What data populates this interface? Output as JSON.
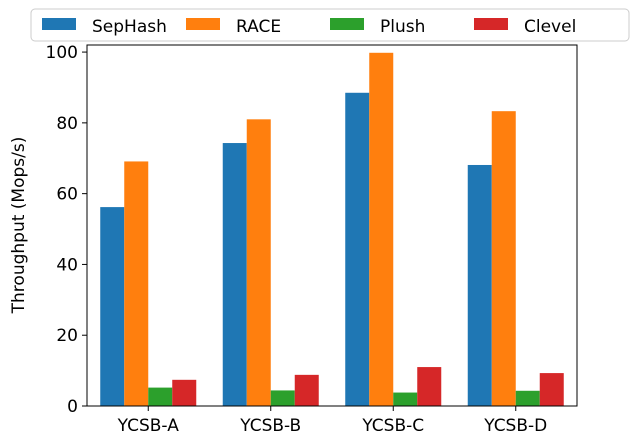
{
  "chart_data": {
    "type": "bar",
    "categories": [
      "YCSB-A",
      "YCSB-B",
      "YCSB-C",
      "YCSB-D"
    ],
    "series": [
      {
        "name": "SepHash",
        "color": "#1f77b4",
        "values": [
          56.2,
          74.3,
          88.5,
          68.1
        ]
      },
      {
        "name": "RACE",
        "color": "#ff7f0e",
        "values": [
          69.1,
          81.0,
          99.8,
          83.3
        ]
      },
      {
        "name": "Plush",
        "color": "#2ca02c",
        "values": [
          5.2,
          4.4,
          3.8,
          4.3
        ]
      },
      {
        "name": "Clevel",
        "color": "#d62728",
        "values": [
          7.4,
          8.8,
          11.0,
          9.3
        ]
      }
    ],
    "title": "",
    "xlabel": "",
    "ylabel": "Throughput (Mops/s)",
    "ylim": [
      0,
      102
    ],
    "yticks": [
      0,
      20,
      40,
      60,
      80,
      100
    ],
    "grid": false,
    "legend_position": "top"
  }
}
